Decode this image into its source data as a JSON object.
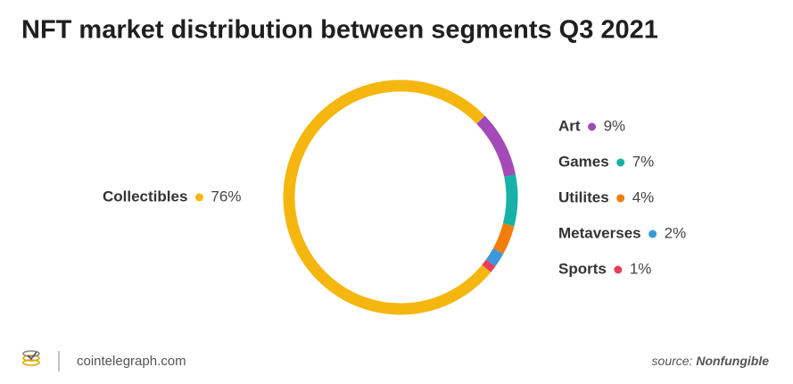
{
  "chart_data": {
    "type": "pie",
    "title": "NFT market distribution between segments Q3 2021",
    "categories": [
      "Collectibles",
      "Art",
      "Games",
      "Utilites",
      "Metaverses",
      "Sports"
    ],
    "values": [
      76,
      9,
      7,
      4,
      2,
      1
    ],
    "value_labels": [
      "76%",
      "9%",
      "7%",
      "4%",
      "2%",
      "1%"
    ],
    "colors": [
      "#f5b70f",
      "#a34ab8",
      "#16b1a9",
      "#f27d0c",
      "#3a9ad9",
      "#e83e5c"
    ]
  },
  "footer": {
    "brand": "cointelegraph.com",
    "source_label": "source:",
    "source": "Nonfungible"
  }
}
